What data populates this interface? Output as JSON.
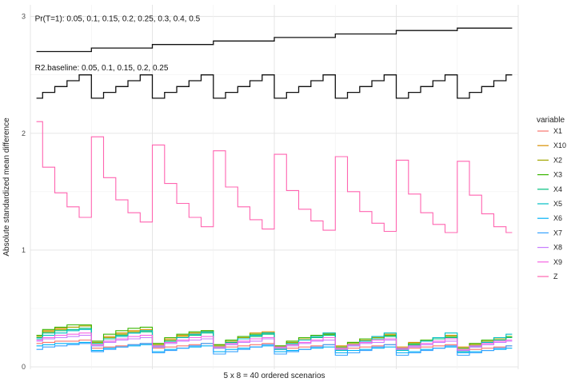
{
  "chart_data": {
    "type": "line",
    "xlabel": "5 x 8 = 40 ordered scenarios",
    "ylabel": "Absolute standardized mean difference",
    "xlim": [
      0.5,
      40.5
    ],
    "ylim": [
      -0.02,
      3.1
    ],
    "yticks": [
      0,
      1,
      2,
      3
    ],
    "grid": true,
    "legend_title": "variable",
    "legend_position": "right",
    "annotations": [
      {
        "text": "Pr(T=1): 0.05, 0.1, 0.15, 0.2, 0.25, 0.3, 0.4, 0.5",
        "x": 1,
        "y": 2.98
      },
      {
        "text": "R2.baseline: 0.05, 0.1, 0.15, 0.2, 0.25",
        "x": 1,
        "y": 2.56
      }
    ],
    "guides": [
      {
        "name": "Pr(T=1) steps",
        "values": [
          2.7,
          2.7,
          2.7,
          2.7,
          2.7,
          2.73,
          2.73,
          2.73,
          2.73,
          2.73,
          2.76,
          2.76,
          2.76,
          2.76,
          2.76,
          2.79,
          2.79,
          2.79,
          2.79,
          2.79,
          2.82,
          2.82,
          2.82,
          2.82,
          2.82,
          2.85,
          2.85,
          2.85,
          2.85,
          2.85,
          2.88,
          2.88,
          2.88,
          2.88,
          2.88,
          2.9,
          2.9,
          2.9,
          2.9,
          2.9
        ]
      },
      {
        "name": "R2.baseline steps",
        "values": [
          2.3,
          2.35,
          2.4,
          2.45,
          2.5,
          2.3,
          2.35,
          2.4,
          2.45,
          2.5,
          2.3,
          2.35,
          2.4,
          2.45,
          2.5,
          2.3,
          2.35,
          2.4,
          2.45,
          2.5,
          2.3,
          2.35,
          2.4,
          2.45,
          2.5,
          2.3,
          2.35,
          2.4,
          2.45,
          2.5,
          2.3,
          2.35,
          2.4,
          2.45,
          2.5,
          2.3,
          2.35,
          2.4,
          2.45,
          2.5
        ]
      }
    ],
    "series": [
      {
        "name": "X1",
        "color": "#F8766D",
        "values": [
          0.2,
          0.21,
          0.22,
          0.22,
          0.23,
          0.16,
          0.17,
          0.18,
          0.19,
          0.2,
          0.16,
          0.17,
          0.18,
          0.19,
          0.2,
          0.16,
          0.17,
          0.18,
          0.19,
          0.2,
          0.15,
          0.16,
          0.17,
          0.18,
          0.19,
          0.15,
          0.16,
          0.17,
          0.18,
          0.19,
          0.15,
          0.16,
          0.17,
          0.18,
          0.19,
          0.14,
          0.15,
          0.16,
          0.17,
          0.18
        ]
      },
      {
        "name": "X10",
        "color": "#D89000",
        "values": [
          0.27,
          0.31,
          0.33,
          0.34,
          0.35,
          0.22,
          0.26,
          0.29,
          0.31,
          0.32,
          0.2,
          0.24,
          0.27,
          0.29,
          0.31,
          0.19,
          0.23,
          0.26,
          0.29,
          0.3,
          0.18,
          0.22,
          0.25,
          0.27,
          0.29,
          0.18,
          0.21,
          0.24,
          0.26,
          0.28,
          0.17,
          0.21,
          0.23,
          0.25,
          0.27,
          0.17,
          0.2,
          0.23,
          0.25,
          0.26
        ]
      },
      {
        "name": "X2",
        "color": "#A3A500",
        "values": [
          0.26,
          0.3,
          0.32,
          0.34,
          0.35,
          0.21,
          0.25,
          0.28,
          0.3,
          0.31,
          0.19,
          0.23,
          0.26,
          0.28,
          0.3,
          0.18,
          0.22,
          0.25,
          0.27,
          0.29,
          0.17,
          0.21,
          0.24,
          0.26,
          0.28,
          0.16,
          0.2,
          0.23,
          0.25,
          0.27,
          0.16,
          0.19,
          0.22,
          0.24,
          0.26,
          0.15,
          0.19,
          0.22,
          0.24,
          0.25
        ]
      },
      {
        "name": "X3",
        "color": "#39B600",
        "values": [
          0.27,
          0.32,
          0.34,
          0.36,
          0.36,
          0.22,
          0.28,
          0.31,
          0.33,
          0.34,
          0.2,
          0.25,
          0.28,
          0.3,
          0.31,
          0.19,
          0.23,
          0.26,
          0.28,
          0.29,
          0.18,
          0.22,
          0.25,
          0.27,
          0.28,
          0.17,
          0.21,
          0.24,
          0.26,
          0.27,
          0.16,
          0.2,
          0.23,
          0.25,
          0.26,
          0.16,
          0.2,
          0.23,
          0.25,
          0.26
        ]
      },
      {
        "name": "X4",
        "color": "#00BF7D",
        "values": [
          0.25,
          0.29,
          0.31,
          0.32,
          0.33,
          0.2,
          0.24,
          0.27,
          0.29,
          0.3,
          0.18,
          0.22,
          0.25,
          0.27,
          0.29,
          0.17,
          0.21,
          0.24,
          0.26,
          0.28,
          0.16,
          0.2,
          0.23,
          0.25,
          0.27,
          0.15,
          0.19,
          0.22,
          0.24,
          0.26,
          0.15,
          0.19,
          0.22,
          0.24,
          0.25,
          0.14,
          0.18,
          0.21,
          0.23,
          0.25
        ]
      },
      {
        "name": "X5",
        "color": "#00BFC4",
        "values": [
          0.24,
          0.27,
          0.29,
          0.31,
          0.32,
          0.18,
          0.22,
          0.26,
          0.29,
          0.31,
          0.17,
          0.21,
          0.25,
          0.28,
          0.3,
          0.16,
          0.2,
          0.24,
          0.27,
          0.29,
          0.15,
          0.19,
          0.23,
          0.26,
          0.29,
          0.14,
          0.18,
          0.22,
          0.26,
          0.29,
          0.14,
          0.18,
          0.22,
          0.25,
          0.29,
          0.13,
          0.17,
          0.21,
          0.25,
          0.28
        ]
      },
      {
        "name": "X6",
        "color": "#00B0F6",
        "values": [
          0.18,
          0.19,
          0.2,
          0.2,
          0.21,
          0.14,
          0.16,
          0.17,
          0.18,
          0.19,
          0.13,
          0.15,
          0.16,
          0.17,
          0.18,
          0.13,
          0.15,
          0.16,
          0.17,
          0.18,
          0.13,
          0.14,
          0.15,
          0.16,
          0.17,
          0.12,
          0.14,
          0.15,
          0.16,
          0.17,
          0.12,
          0.13,
          0.15,
          0.16,
          0.17,
          0.12,
          0.13,
          0.14,
          0.15,
          0.16
        ]
      },
      {
        "name": "X7",
        "color": "#35A2FF",
        "values": [
          0.15,
          0.17,
          0.18,
          0.19,
          0.2,
          0.13,
          0.15,
          0.17,
          0.19,
          0.2,
          0.12,
          0.14,
          0.16,
          0.18,
          0.2,
          0.11,
          0.13,
          0.15,
          0.17,
          0.19,
          0.11,
          0.13,
          0.15,
          0.17,
          0.19,
          0.1,
          0.12,
          0.14,
          0.17,
          0.19,
          0.1,
          0.12,
          0.14,
          0.16,
          0.18,
          0.1,
          0.12,
          0.14,
          0.16,
          0.18
        ]
      },
      {
        "name": "X8",
        "color": "#C77CFF",
        "values": [
          0.22,
          0.24,
          0.25,
          0.26,
          0.27,
          0.18,
          0.21,
          0.23,
          0.24,
          0.25,
          0.17,
          0.2,
          0.22,
          0.23,
          0.24,
          0.16,
          0.19,
          0.21,
          0.22,
          0.24,
          0.16,
          0.18,
          0.2,
          0.22,
          0.23,
          0.15,
          0.18,
          0.2,
          0.21,
          0.23,
          0.15,
          0.17,
          0.19,
          0.21,
          0.22,
          0.14,
          0.17,
          0.19,
          0.21,
          0.22
        ]
      },
      {
        "name": "X9",
        "color": "#F564E3",
        "values": [
          0.23,
          0.25,
          0.27,
          0.28,
          0.29,
          0.19,
          0.22,
          0.24,
          0.26,
          0.27,
          0.18,
          0.21,
          0.23,
          0.25,
          0.26,
          0.17,
          0.2,
          0.22,
          0.24,
          0.25,
          0.17,
          0.19,
          0.21,
          0.23,
          0.25,
          0.16,
          0.19,
          0.21,
          0.23,
          0.24,
          0.16,
          0.18,
          0.2,
          0.22,
          0.24,
          0.15,
          0.18,
          0.2,
          0.22,
          0.23
        ]
      },
      {
        "name": "Z",
        "color": "#FF64B0",
        "values": [
          2.1,
          1.71,
          1.49,
          1.37,
          1.28,
          1.97,
          1.62,
          1.43,
          1.32,
          1.24,
          1.9,
          1.57,
          1.4,
          1.28,
          1.2,
          1.85,
          1.54,
          1.37,
          1.26,
          1.18,
          1.82,
          1.51,
          1.35,
          1.25,
          1.17,
          1.8,
          1.5,
          1.33,
          1.23,
          1.16,
          1.77,
          1.48,
          1.32,
          1.22,
          1.15,
          1.76,
          1.47,
          1.31,
          1.2,
          1.15
        ]
      }
    ]
  }
}
